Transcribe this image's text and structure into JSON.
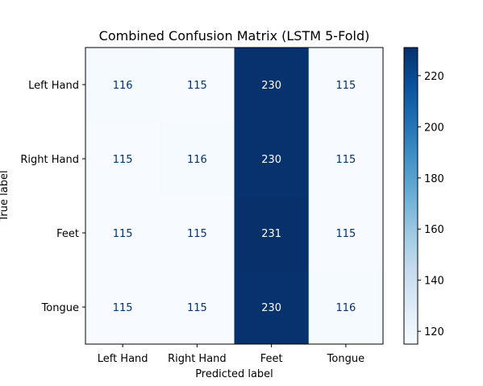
{
  "chart_data": {
    "type": "heatmap",
    "title": "Combined Confusion Matrix (LSTM 5-Fold)",
    "xlabel": "Predicted label",
    "ylabel": "True label",
    "x_categories": [
      "Left Hand",
      "Right Hand",
      "Feet",
      "Tongue"
    ],
    "y_categories": [
      "Left Hand",
      "Right Hand",
      "Feet",
      "Tongue"
    ],
    "values": [
      [
        116,
        115,
        230,
        115
      ],
      [
        115,
        116,
        230,
        115
      ],
      [
        115,
        115,
        231,
        115
      ],
      [
        115,
        115,
        230,
        116
      ]
    ],
    "colormap": "Blues",
    "colorbar": {
      "range": [
        115,
        231
      ],
      "ticks": [
        120,
        140,
        160,
        180,
        200,
        220
      ]
    },
    "colors": {
      "low": "#f7fbff",
      "high": "#08306b",
      "text_light": "#ffffff",
      "text_dark": "#08306b"
    },
    "grid": false
  }
}
